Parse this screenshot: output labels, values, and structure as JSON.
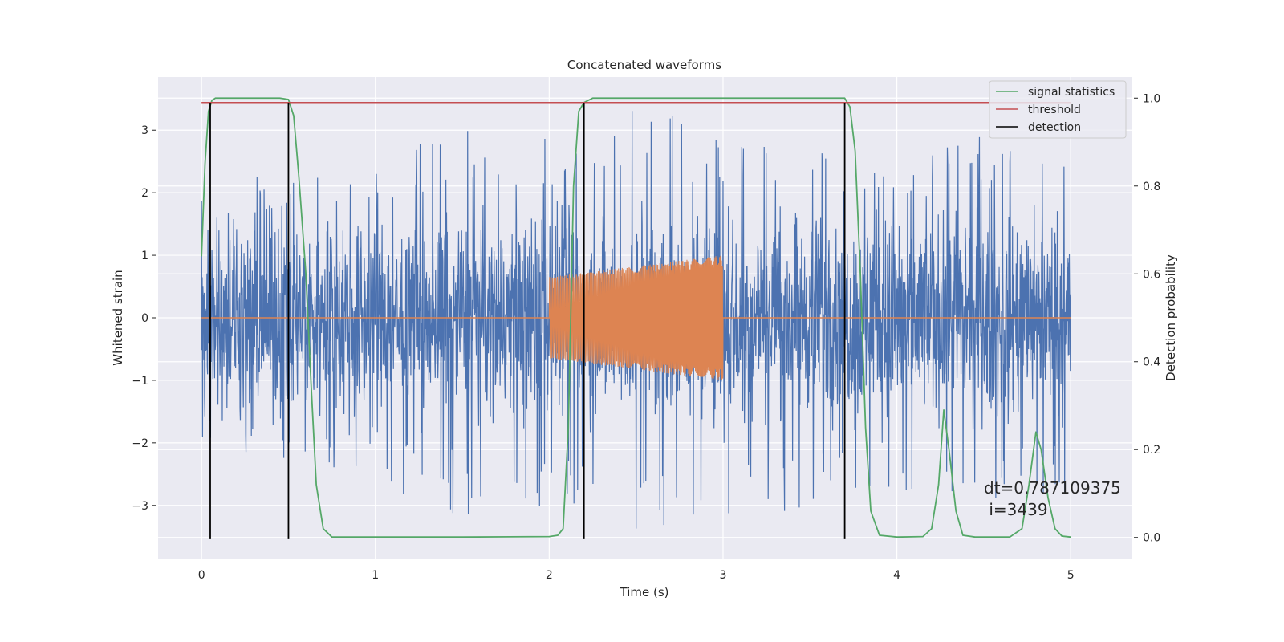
{
  "chart_data": {
    "type": "line",
    "title": "Concatenated waveforms",
    "xlabel": "Time (s)",
    "ylabel": "Whitened strain",
    "ylabel_right": "Detection probability",
    "xlim": [
      -0.25,
      5.35
    ],
    "ylim": [
      -3.85,
      3.85
    ],
    "ylim_right": [
      -0.048,
      1.048
    ],
    "x_ticks": [
      "0",
      "1",
      "2",
      "3",
      "4",
      "5"
    ],
    "y_ticks": [
      "3",
      "2",
      "1",
      "0",
      "−1",
      "−2",
      "−3"
    ],
    "y_right_ticks": [
      "1.0",
      "0.8",
      "0.6",
      "0.4",
      "0.2",
      "0.0"
    ],
    "grid": true,
    "legend": {
      "placement": "top-right",
      "entries": [
        {
          "label": "signal statistics",
          "color": "#55a868"
        },
        {
          "label": "threshold",
          "color": "#c44e52"
        },
        {
          "label": "detection",
          "color": "#000000"
        }
      ]
    },
    "annotation": {
      "line1": "dt=0.787109375",
      "line2": " i=3439"
    },
    "colors": {
      "strain": "#4c72b0",
      "injection": "#dd8452",
      "background": "#eaeaf2"
    },
    "series": [
      {
        "name": "signal statistics",
        "axis": "right",
        "x": [
          0.0,
          0.02,
          0.04,
          0.06,
          0.08,
          0.1,
          0.15,
          0.2,
          0.3,
          0.4,
          0.45,
          0.5,
          0.53,
          0.56,
          0.6,
          0.63,
          0.66,
          0.7,
          0.75,
          1.0,
          1.5,
          2.0,
          2.05,
          2.08,
          2.11,
          2.14,
          2.17,
          2.2,
          2.25,
          2.3,
          2.5,
          3.0,
          3.5,
          3.7,
          3.73,
          3.76,
          3.79,
          3.82,
          3.85,
          3.9,
          4.0,
          4.15,
          4.2,
          4.24,
          4.27,
          4.3,
          4.34,
          4.38,
          4.45,
          4.65,
          4.72,
          4.76,
          4.8,
          4.83,
          4.87,
          4.91,
          4.95,
          5.0
        ],
        "y": [
          0.64,
          0.85,
          0.97,
          0.995,
          1.0,
          1.0,
          1.0,
          1.0,
          1.0,
          1.0,
          1.0,
          0.997,
          0.96,
          0.82,
          0.6,
          0.35,
          0.12,
          0.02,
          0.001,
          0.001,
          0.001,
          0.002,
          0.005,
          0.02,
          0.25,
          0.8,
          0.97,
          0.99,
          1.0,
          1.0,
          1.0,
          1.0,
          1.0,
          1.0,
          0.98,
          0.88,
          0.6,
          0.25,
          0.06,
          0.005,
          0.001,
          0.002,
          0.02,
          0.12,
          0.29,
          0.2,
          0.06,
          0.005,
          0.001,
          0.001,
          0.02,
          0.12,
          0.24,
          0.2,
          0.09,
          0.02,
          0.003,
          0.001
        ]
      },
      {
        "name": "threshold",
        "axis": "right",
        "x": [
          0.0,
          5.0
        ],
        "y": [
          0.99,
          0.99
        ]
      },
      {
        "name": "detection",
        "axis": "left",
        "type": "vlines",
        "x": [
          0.05,
          0.5,
          2.2,
          3.7
        ],
        "ymin": -3.54,
        "ymax": 3.44
      },
      {
        "name": "",
        "axis": "left",
        "description_free": true,
        "x_range": [
          0.0,
          5.0
        ],
        "amplitude_envelope": [
          {
            "x": 0.0,
            "upper": 1.9,
            "lower": -2.0
          },
          {
            "x": 0.5,
            "upper": 2.6,
            "lower": -2.6
          },
          {
            "x": 1.0,
            "upper": 2.5,
            "lower": -2.6
          },
          {
            "x": 1.5,
            "upper": 3.1,
            "lower": -3.3
          },
          {
            "x": 2.0,
            "upper": 2.9,
            "lower": -3.0
          },
          {
            "x": 2.5,
            "upper": 3.4,
            "lower": -3.5
          },
          {
            "x": 3.0,
            "upper": 3.0,
            "lower": -3.5
          },
          {
            "x": 3.5,
            "upper": 2.9,
            "lower": -3.0
          },
          {
            "x": 4.0,
            "upper": 2.7,
            "lower": -2.8
          },
          {
            "x": 4.5,
            "upper": 2.9,
            "lower": -2.9
          },
          {
            "x": 5.0,
            "upper": 2.7,
            "lower": -2.9
          }
        ]
      },
      {
        "name": "",
        "axis": "left",
        "x": [
          0.0,
          2.0,
          3.0,
          5.0
        ],
        "y": [
          0.0,
          0.0,
          0.0,
          0.0
        ],
        "chirp": {
          "x_start": 2.0,
          "x_end": 3.0,
          "amp_start": 0.65,
          "amp_end": 1.0
        }
      }
    ]
  }
}
